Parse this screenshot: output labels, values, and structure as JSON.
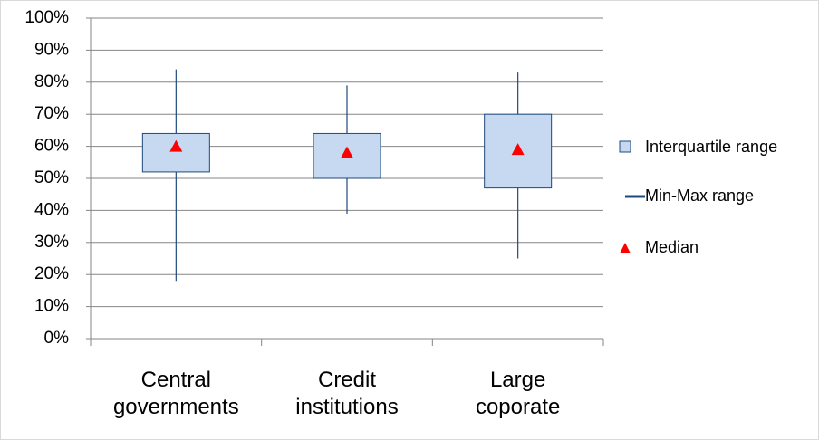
{
  "chart_data": {
    "type": "box",
    "categories": [
      "Central governments",
      "Credit institutions",
      "Large coporate"
    ],
    "boxes": {
      "name": "Interquartile range",
      "color": "#c6d9f1",
      "q1": [
        52,
        50,
        47
      ],
      "q3": [
        64,
        64,
        70
      ]
    },
    "whiskers": {
      "name": "Min-Max range",
      "color": "#1f497d",
      "min": [
        18,
        39,
        25
      ],
      "max": [
        84,
        79,
        83
      ]
    },
    "medians": {
      "name": "Median",
      "color": "#ff0000",
      "values": [
        60,
        58,
        59
      ]
    },
    "ylim": [
      0,
      100
    ],
    "yticks": [
      {
        "value": 0,
        "label": "0%"
      },
      {
        "value": 10,
        "label": "10%"
      },
      {
        "value": 20,
        "label": "20%"
      },
      {
        "value": 30,
        "label": "30%"
      },
      {
        "value": 40,
        "label": "40%"
      },
      {
        "value": 50,
        "label": "50%"
      },
      {
        "value": 60,
        "label": "60%"
      },
      {
        "value": 70,
        "label": "70%"
      },
      {
        "value": 80,
        "label": "80%"
      },
      {
        "value": 90,
        "label": "90%"
      },
      {
        "value": 100,
        "label": "100%"
      }
    ],
    "grid": true,
    "legend": "right"
  }
}
